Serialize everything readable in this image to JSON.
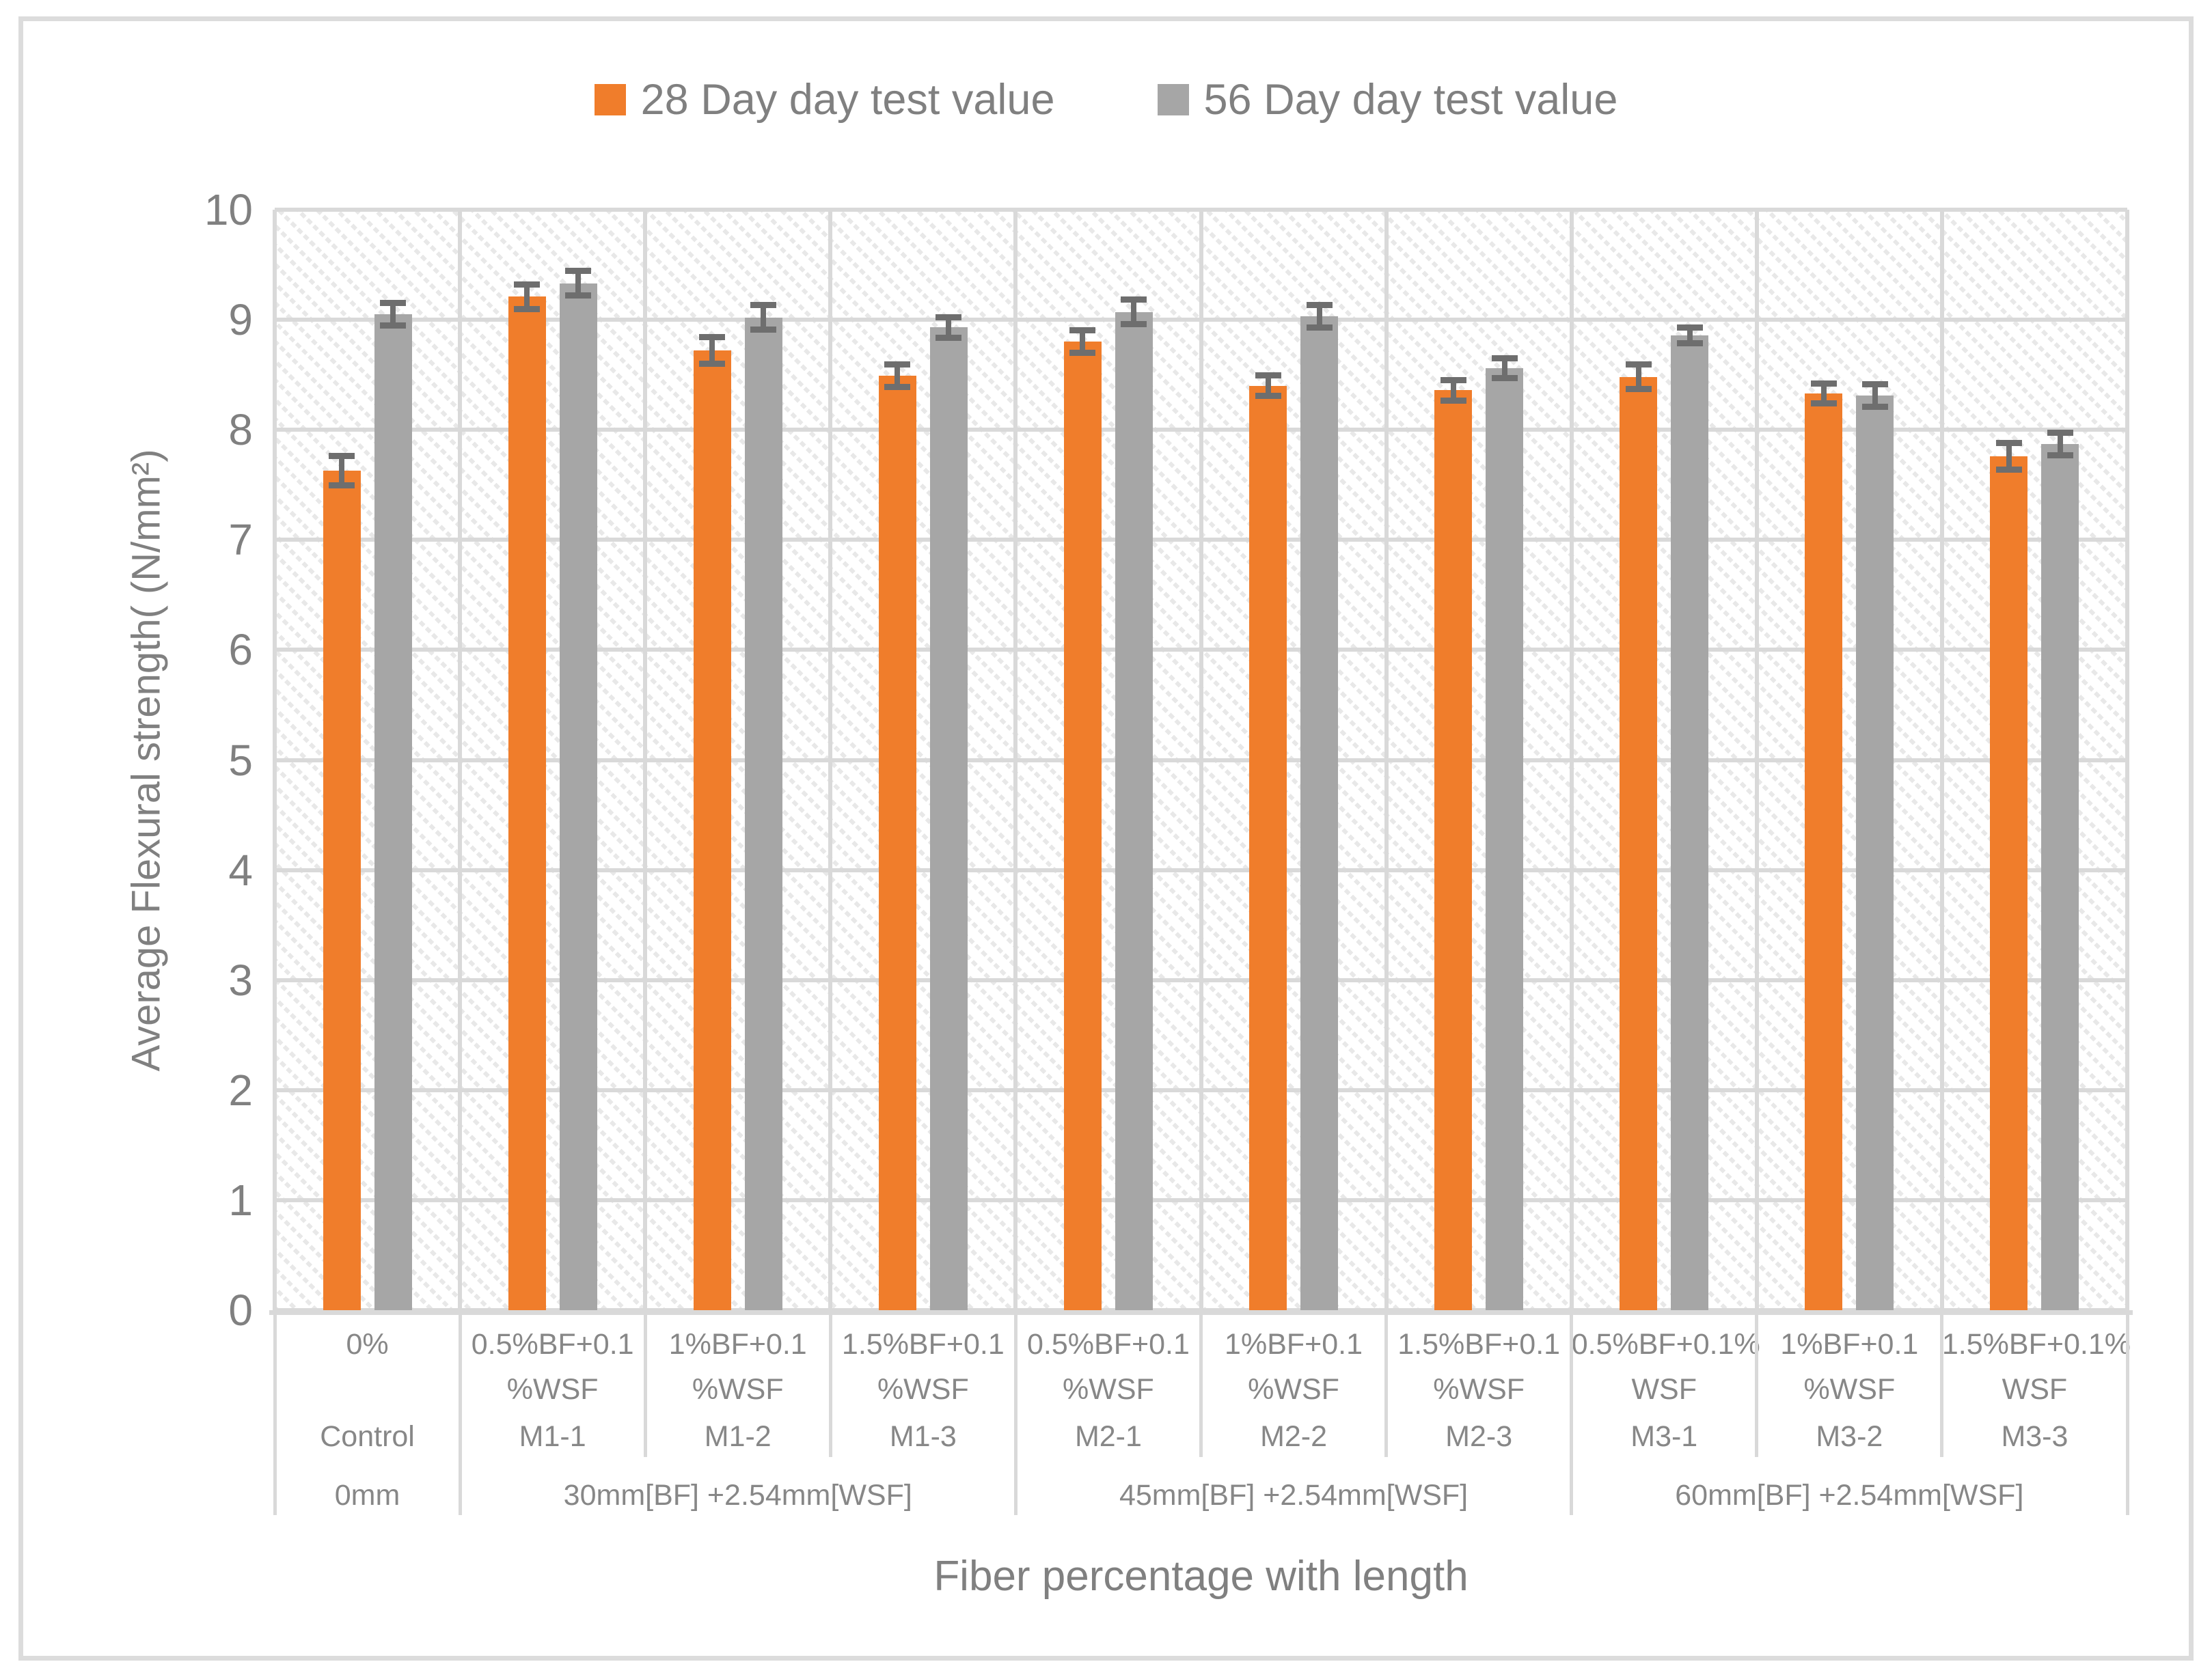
{
  "colors": {
    "series_28day": "#F07D2B",
    "series_56day": "#A6A6A6",
    "gridline": "#D9D9D9",
    "error_bar": "#6E6E6E",
    "text": "#808080",
    "frame_border": "#DCDCDC",
    "plot_hatch": "#E8E8E8"
  },
  "chart_data": {
    "type": "bar",
    "title": "",
    "xlabel": "Fiber percentage with length",
    "ylabel": "Average Flexural strength( (N/mm²)",
    "ylim": [
      0,
      10
    ],
    "ytick_step": 1,
    "yticks": [
      0,
      1,
      2,
      3,
      4,
      5,
      6,
      7,
      8,
      9,
      10
    ],
    "grid": true,
    "legend_position": "top-center",
    "plot_background": "diagonal-hatch-pattern",
    "error_bars": true,
    "categories": [
      {
        "mix": "0%",
        "code": "Control"
      },
      {
        "mix": "0.5%BF+0.1\n%WSF",
        "code": "M1-1"
      },
      {
        "mix": "1%BF+0.1\n%WSF",
        "code": "M1-2"
      },
      {
        "mix": "1.5%BF+0.1\n%WSF",
        "code": "M1-3"
      },
      {
        "mix": "0.5%BF+0.1\n%WSF",
        "code": "M2-1"
      },
      {
        "mix": "1%BF+0.1\n%WSF",
        "code": "M2-2"
      },
      {
        "mix": "1.5%BF+0.1\n%WSF",
        "code": "M2-3"
      },
      {
        "mix": "0.5%BF+0.1%\nWSF",
        "code": "M3-1"
      },
      {
        "mix": "1%BF+0.1\n%WSF",
        "code": "M3-2"
      },
      {
        "mix": "1.5%BF+0.1%\nWSF",
        "code": "M3-3"
      }
    ],
    "groups": [
      {
        "label": "0mm",
        "span": 1
      },
      {
        "label": "30mm[BF] +2.54mm[WSF]",
        "span": 3
      },
      {
        "label": "45mm[BF] +2.54mm[WSF]",
        "span": 3
      },
      {
        "label": "60mm[BF] +2.54mm[WSF]",
        "span": 3
      }
    ],
    "series": [
      {
        "name": "28 Day day test value",
        "color": "#F07D2B",
        "values": [
          7.63,
          9.21,
          8.72,
          8.49,
          8.8,
          8.4,
          8.36,
          8.48,
          8.33,
          7.76
        ],
        "errors": [
          0.16,
          0.14,
          0.15,
          0.13,
          0.13,
          0.12,
          0.12,
          0.14,
          0.12,
          0.15
        ]
      },
      {
        "name": "56 Day day test value",
        "color": "#A6A6A6",
        "values": [
          9.05,
          9.33,
          9.02,
          8.93,
          9.07,
          9.03,
          8.56,
          8.86,
          8.31,
          7.87
        ],
        "errors": [
          0.13,
          0.14,
          0.14,
          0.12,
          0.14,
          0.13,
          0.12,
          0.1,
          0.13,
          0.13
        ]
      }
    ]
  }
}
